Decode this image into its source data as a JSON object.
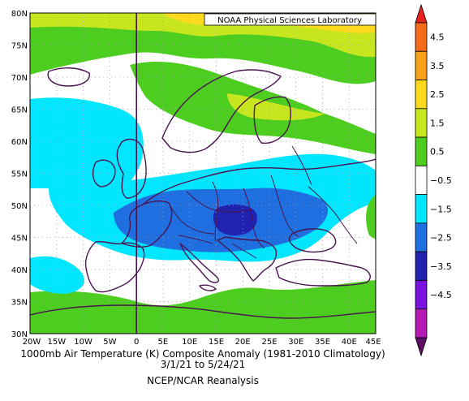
{
  "map": {
    "credit": "NOAA Physical Sciences Laboratory",
    "lat_labels": [
      "80N",
      "75N",
      "70N",
      "65N",
      "60N",
      "55N",
      "50N",
      "45N",
      "40N",
      "35N",
      "30N"
    ],
    "lon_labels": [
      "20W",
      "15W",
      "10W",
      "5W",
      "0",
      "5E",
      "10E",
      "15E",
      "20E",
      "25E",
      "30E",
      "35E",
      "40E",
      "45E"
    ],
    "title": "1000mb Air Temperature (K) Composite Anomaly (1981-2010 Climatology)",
    "dates": "3/1/21   to 5/24/21",
    "source": "NCEP/NCAR Reanalysis",
    "extent": {
      "lon": [
        -20,
        45
      ],
      "lat": [
        30,
        80
      ]
    },
    "colorbar": {
      "labels": [
        "4.5",
        "3.5",
        "2.5",
        "1.5",
        "0.5",
        "−0.5",
        "−1.5",
        "−2.5",
        "−3.5",
        "−4.5"
      ],
      "colors": [
        "#e8231e",
        "#f56b1c",
        "#fba21b",
        "#fdda1e",
        "#c8e61e",
        "#4ccd1f",
        "#ffffff",
        "#00e6ff",
        "#1f6fe0",
        "#2222b0",
        "#7a12e0",
        "#b41bb4",
        "#5a0f64"
      ]
    }
  }
}
